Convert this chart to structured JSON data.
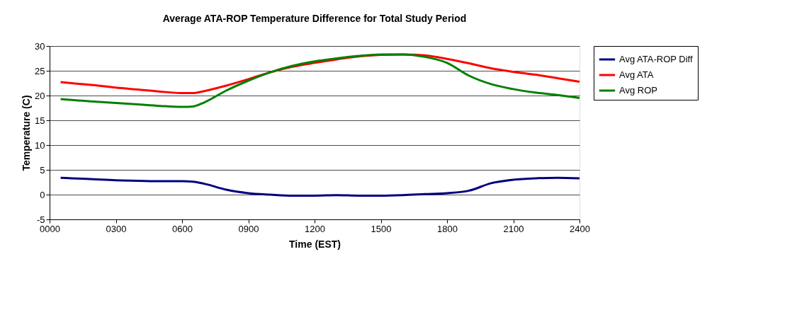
{
  "chart_data": {
    "type": "line",
    "title": "Average ATA-ROP Temperature Difference for Total Study Period",
    "xlabel": "Time (EST)",
    "ylabel": "Temperature (C)",
    "x": [
      50,
      100,
      200,
      300,
      400,
      500,
      600,
      650,
      700,
      800,
      900,
      1000,
      1100,
      1200,
      1300,
      1400,
      1500,
      1600,
      1700,
      1800,
      1900,
      2000,
      2100,
      2200,
      2300,
      2400
    ],
    "series": [
      {
        "name": "Avg ATA-ROP Diff",
        "color": "#000080",
        "values": [
          3.4,
          3.3,
          3.1,
          2.9,
          2.8,
          2.7,
          2.7,
          2.6,
          2.2,
          1.0,
          0.3,
          0.0,
          -0.2,
          -0.2,
          -0.1,
          -0.2,
          -0.2,
          -0.1,
          0.1,
          0.3,
          0.8,
          2.3,
          3.0,
          3.3,
          3.4,
          3.3
        ]
      },
      {
        "name": "Avg ATA",
        "color": "#ff0000",
        "values": [
          22.7,
          22.5,
          22.1,
          21.6,
          21.2,
          20.8,
          20.5,
          20.5,
          20.9,
          22.0,
          23.3,
          24.7,
          25.8,
          26.6,
          27.3,
          27.9,
          28.2,
          28.3,
          28.1,
          27.4,
          26.5,
          25.5,
          24.8,
          24.2,
          23.5,
          22.8
        ]
      },
      {
        "name": "Avg ROP",
        "color": "#008000",
        "values": [
          19.3,
          19.1,
          18.8,
          18.5,
          18.2,
          17.9,
          17.7,
          17.8,
          18.6,
          21.0,
          23.0,
          24.7,
          26.0,
          26.9,
          27.5,
          28.0,
          28.3,
          28.3,
          27.8,
          26.6,
          24.0,
          22.3,
          21.3,
          20.6,
          20.1,
          19.5
        ]
      }
    ],
    "xlim": [
      0,
      2400
    ],
    "xticks": [
      {
        "value": 0,
        "label": "0000"
      },
      {
        "value": 300,
        "label": "0300"
      },
      {
        "value": 600,
        "label": "0600"
      },
      {
        "value": 900,
        "label": "0900"
      },
      1200,
      1500,
      1800,
      2100,
      2400
    ],
    "ylim": [
      -5,
      30
    ],
    "yticks": [
      -5,
      0,
      5,
      10,
      15,
      20,
      25,
      30
    ],
    "grid": "y",
    "legend": "right",
    "marker": "none",
    "line_style": "solid"
  }
}
